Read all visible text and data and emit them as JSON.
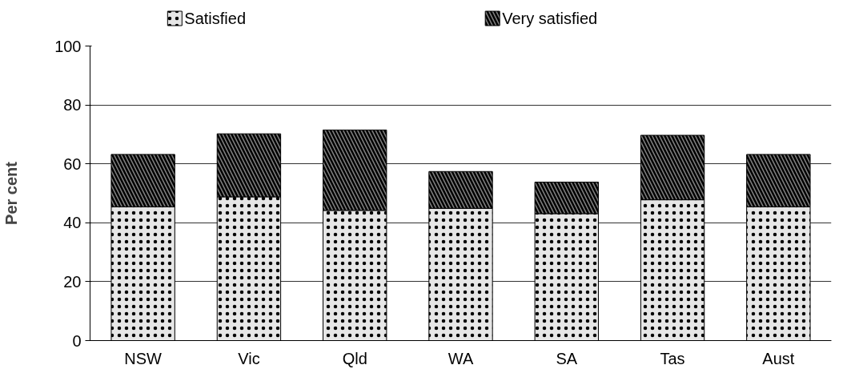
{
  "chart_data": {
    "type": "bar",
    "stacked": true,
    "ylabel": "Per cent",
    "categories": [
      "NSW",
      "Vic",
      "Qld",
      "WA",
      "SA",
      "Tas",
      "Aust"
    ],
    "series": [
      {
        "name": "Satisfied",
        "color": "#e6e6e6",
        "values": [
          45.4,
          48.8,
          44.2,
          44.9,
          43.1,
          47.8,
          45.4
        ]
      },
      {
        "name": "Very satisfied",
        "color": "#808080",
        "values": [
          17.8,
          21.4,
          27.3,
          12.5,
          10.7,
          21.9,
          17.8
        ]
      }
    ],
    "ylim": [
      0,
      100
    ],
    "yticks": [
      0,
      20,
      40,
      60,
      80,
      100
    ],
    "grid": "y",
    "legend": "top"
  }
}
